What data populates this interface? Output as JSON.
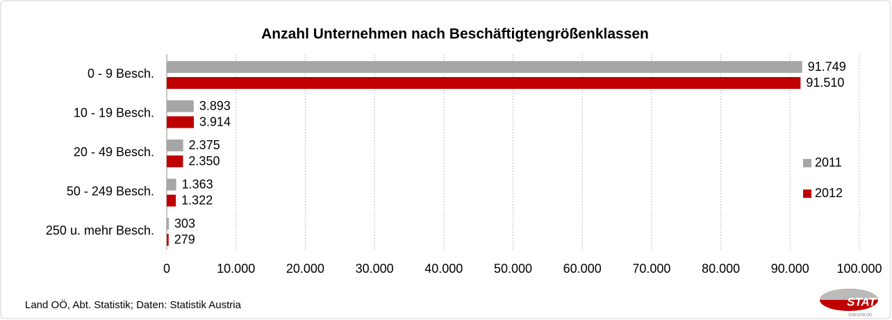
{
  "chart_data": {
    "type": "bar",
    "orientation": "horizontal",
    "title": "Anzahl Unternehmen nach Beschäftigtengrößenklassen",
    "categories": [
      "0 - 9 Besch.",
      "10 - 19 Besch.",
      "20 - 49 Besch.",
      "50 - 249 Besch.",
      "250 u. mehr Besch."
    ],
    "series": [
      {
        "name": "2011",
        "color": "#a6a6a6",
        "values": [
          91749,
          3893,
          2375,
          1363,
          303
        ],
        "value_labels": [
          "91.749",
          "3.893",
          "2.375",
          "1.363",
          "303"
        ]
      },
      {
        "name": "2012",
        "color": "#c00000",
        "values": [
          91510,
          3914,
          2350,
          1322,
          279
        ],
        "value_labels": [
          "91.510",
          "3.914",
          "2.350",
          "1.322",
          "279"
        ]
      }
    ],
    "xlim": [
      0,
      100000
    ],
    "xticks": [
      0,
      {
        "value": 10000,
        "label": "10.000"
      },
      {
        "value": 20000,
        "label": "20.000"
      },
      {
        "value": 30000,
        "label": "30.000"
      },
      {
        "value": 40000,
        "label": "40.000"
      },
      {
        "value": 50000,
        "label": "50.000"
      },
      {
        "value": 60000,
        "label": "60.000"
      },
      {
        "value": 70000,
        "label": "70.000"
      },
      {
        "value": 80000,
        "label": "80.000"
      },
      {
        "value": 90000,
        "label": "90.000"
      },
      {
        "value": 100000,
        "label": "100.000"
      }
    ],
    "grid": true,
    "legend": "right",
    "source": "Land OÖ, Abt. Statistik; Daten: Statistik Austria"
  },
  "logo": {
    "text": "STAT",
    "subtext": "STATISTIK OÖ"
  }
}
